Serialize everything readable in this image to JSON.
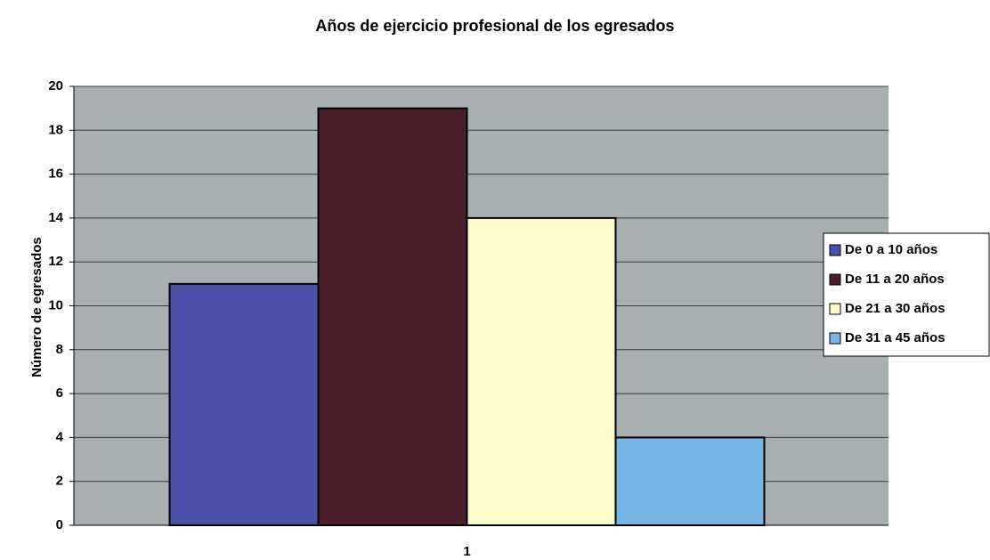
{
  "chart_data": {
    "type": "bar",
    "title": "Años de ejercicio profesional de los egresados",
    "y_label": "Número de egresados",
    "categories": [
      "1"
    ],
    "series": [
      {
        "name": "De 0 a 10 años",
        "color": "#4a4fa8",
        "values": [
          11
        ]
      },
      {
        "name": "De 11 a 20 años",
        "color": "#4b1e2b",
        "values": [
          19
        ]
      },
      {
        "name": "De 21 a 30 años",
        "color": "#fcfbc9",
        "values": [
          14
        ]
      },
      {
        "name": "De 31 a 45 años",
        "color": "#76b5e6",
        "values": [
          4
        ]
      }
    ],
    "ylim": [
      0,
      20
    ],
    "yticks": [
      0,
      2,
      4,
      6,
      8,
      10,
      12,
      14,
      16,
      18,
      20
    ],
    "grid": true,
    "legend": "right"
  }
}
